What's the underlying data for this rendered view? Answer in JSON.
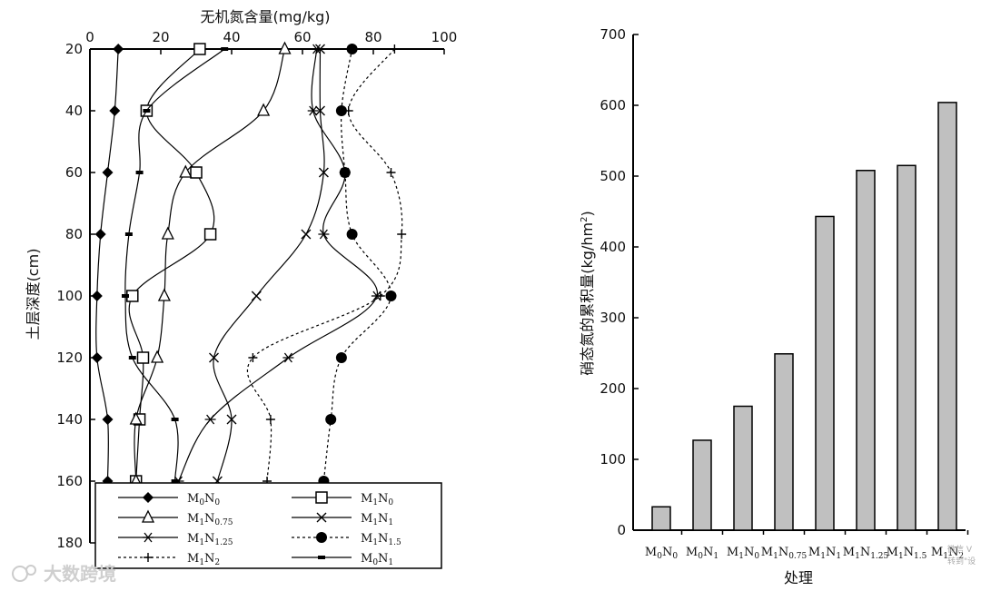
{
  "watermark": "大数跨境",
  "corner_text": [
    "微信 V",
    "转到\"设"
  ],
  "chart_data": [
    {
      "type": "line",
      "orientation": "depth-profile",
      "title": "",
      "xlabel": "无机氮含量(mg/kg)",
      "ylabel": "土层深度(cm)",
      "xlim": [
        0,
        100
      ],
      "ylim": [
        180,
        20
      ],
      "xticks": [
        "0",
        "20",
        "40",
        "60",
        "80",
        "100"
      ],
      "yticks": [
        "20",
        "40",
        "60",
        "80",
        "100",
        "120",
        "140",
        "160",
        "180"
      ],
      "depth": [
        20,
        40,
        60,
        80,
        100,
        120,
        140,
        160
      ],
      "series": [
        {
          "name": "M0N0",
          "base": "M",
          "sub1": "0",
          "mid": "N",
          "sub2": "0",
          "marker": "diamond",
          "line": "solid",
          "values": [
            8,
            7,
            5,
            3,
            2,
            2,
            5,
            5
          ]
        },
        {
          "name": "M1N0",
          "base": "M",
          "sub1": "1",
          "mid": "N",
          "sub2": "0",
          "marker": "square",
          "line": "solid",
          "values": [
            31,
            16,
            30,
            34,
            12,
            15,
            14,
            13
          ]
        },
        {
          "name": "M1N0.75",
          "base": "M",
          "sub1": "1",
          "mid": "N",
          "sub2": "0.75",
          "marker": "triangle",
          "line": "solid",
          "values": [
            55,
            49,
            27,
            22,
            21,
            19,
            13,
            13
          ]
        },
        {
          "name": "M1N1",
          "base": "M",
          "sub1": "1",
          "mid": "N",
          "sub2": "1",
          "marker": "x",
          "line": "solid",
          "values": [
            65,
            65,
            66,
            61,
            47,
            35,
            40,
            36
          ]
        },
        {
          "name": "M1N1.25",
          "base": "M",
          "sub1": "1",
          "mid": "N",
          "sub2": "1.25",
          "marker": "star",
          "line": "solid",
          "values": [
            64,
            63,
            72,
            66,
            81,
            56,
            34,
            25
          ]
        },
        {
          "name": "M1N1.5",
          "base": "M",
          "sub1": "1",
          "mid": "N",
          "sub2": "1.5",
          "marker": "dot",
          "line": "dotted",
          "values": [
            74,
            71,
            72,
            74,
            85,
            71,
            68,
            66
          ]
        },
        {
          "name": "M1N2",
          "base": "M",
          "sub1": "1",
          "mid": "N",
          "sub2": "2",
          "marker": "plus",
          "line": "dotted",
          "values": [
            86,
            73,
            85,
            88,
            82,
            46,
            51,
            50
          ]
        },
        {
          "name": "M0N1",
          "base": "M",
          "sub1": "0",
          "mid": "N",
          "sub2": "1",
          "marker": "dash",
          "line": "solid",
          "values": [
            38,
            16,
            14,
            11,
            10,
            12,
            24,
            24
          ]
        }
      ]
    },
    {
      "type": "bar",
      "title": "",
      "xlabel": "处理",
      "ylabel": "硝态氮的累积量(kg/hm²)",
      "ylabel_parts": {
        "main": "硝态氮的累积量(kg/hm",
        "sup": "2",
        "end": ")"
      },
      "ylim": [
        0,
        700
      ],
      "yticks": [
        "0",
        "100",
        "200",
        "300",
        "400",
        "500",
        "600",
        "700"
      ],
      "categories": [
        "M0N0",
        "M0N1",
        "M1N0",
        "M1N0.75",
        "M1N1",
        "M1N1.25",
        "M1N1.5",
        "M1N2"
      ],
      "category_parts": [
        {
          "sub1": "0",
          "sub2": "0"
        },
        {
          "sub1": "0",
          "sub2": "1"
        },
        {
          "sub1": "1",
          "sub2": "0"
        },
        {
          "sub1": "1",
          "sub2": "0.75"
        },
        {
          "sub1": "1",
          "sub2": "1"
        },
        {
          "sub1": "1",
          "sub2": "1.25"
        },
        {
          "sub1": "1",
          "sub2": "1.5"
        },
        {
          "sub1": "1",
          "sub2": "2"
        }
      ],
      "values": [
        33,
        127,
        175,
        249,
        443,
        508,
        515,
        604
      ],
      "bar_color": "#c0c0c0"
    }
  ]
}
